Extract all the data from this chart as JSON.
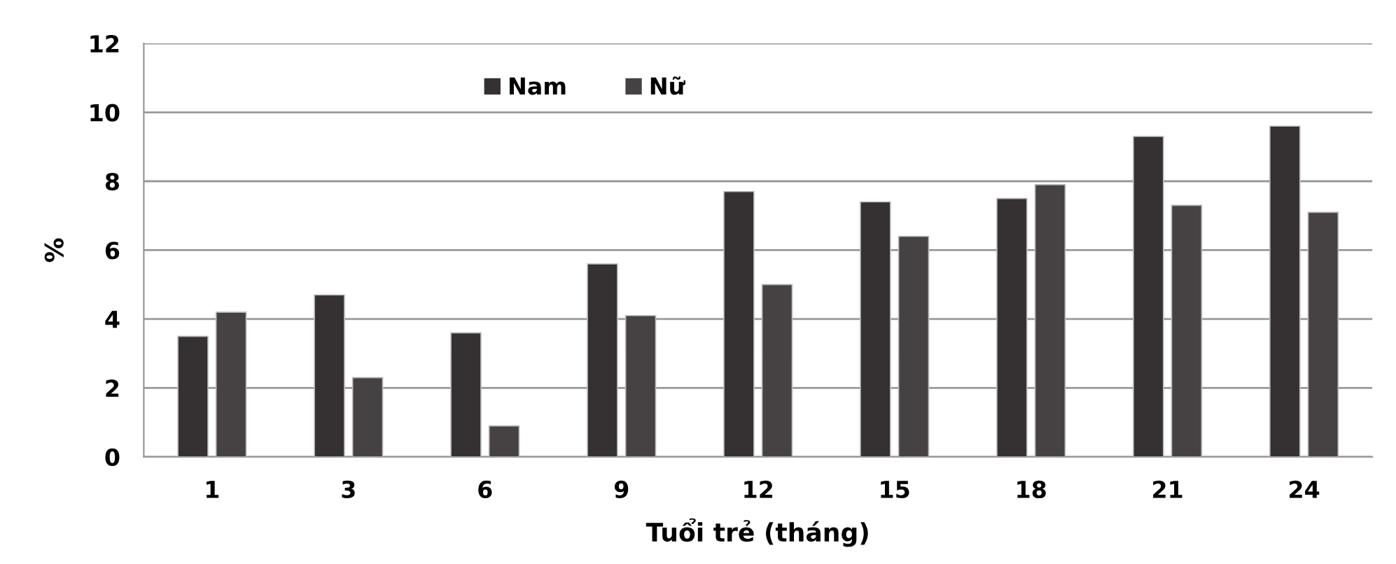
{
  "chart_data": {
    "type": "bar",
    "xlabel": "Tuổi trẻ (tháng)",
    "ylabel": "%",
    "categories": [
      "1",
      "3",
      "6",
      "9",
      "12",
      "15",
      "18",
      "21",
      "24"
    ],
    "series": [
      {
        "name": "Nam",
        "color": "#353132",
        "values": [
          3.5,
          4.7,
          3.6,
          5.6,
          7.7,
          7.4,
          7.5,
          9.3,
          9.6
        ]
      },
      {
        "name": "Nữ",
        "color": "#464243",
        "values": [
          4.2,
          2.3,
          0.9,
          4.1,
          5.0,
          6.4,
          7.9,
          7.3,
          7.1
        ]
      }
    ],
    "ylim": [
      0,
      12
    ],
    "yticks": [
      0,
      2,
      4,
      6,
      8,
      10,
      12
    ],
    "grid": "y",
    "legend": "top"
  }
}
